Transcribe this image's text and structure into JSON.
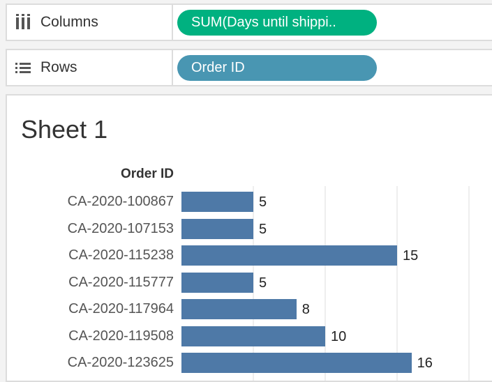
{
  "shelves": {
    "columns": {
      "label": "Columns",
      "icon": "columns-icon",
      "pill": "SUM(Days until shippi..",
      "pill_color": "#00b180"
    },
    "rows": {
      "label": "Rows",
      "icon": "rows-list-icon",
      "pill": "Order ID",
      "pill_color": "#4996b2"
    }
  },
  "sheet_title": "Sheet 1",
  "chart_data": {
    "type": "bar",
    "orientation": "horizontal",
    "row_header": "Order ID",
    "categories": [
      "CA-2020-100867",
      "CA-2020-107153",
      "CA-2020-115238",
      "CA-2020-115777",
      "CA-2020-117964",
      "CA-2020-119508",
      "CA-2020-123625"
    ],
    "values": [
      5,
      5,
      15,
      5,
      8,
      10,
      16
    ],
    "data_labels": [
      "5",
      "5",
      "15",
      "5",
      "8",
      "10",
      "16"
    ],
    "gridlines": [
      5,
      10,
      15,
      20
    ],
    "xlim": [
      0,
      22
    ],
    "bar_color": "#4e79a7",
    "grid": true
  }
}
